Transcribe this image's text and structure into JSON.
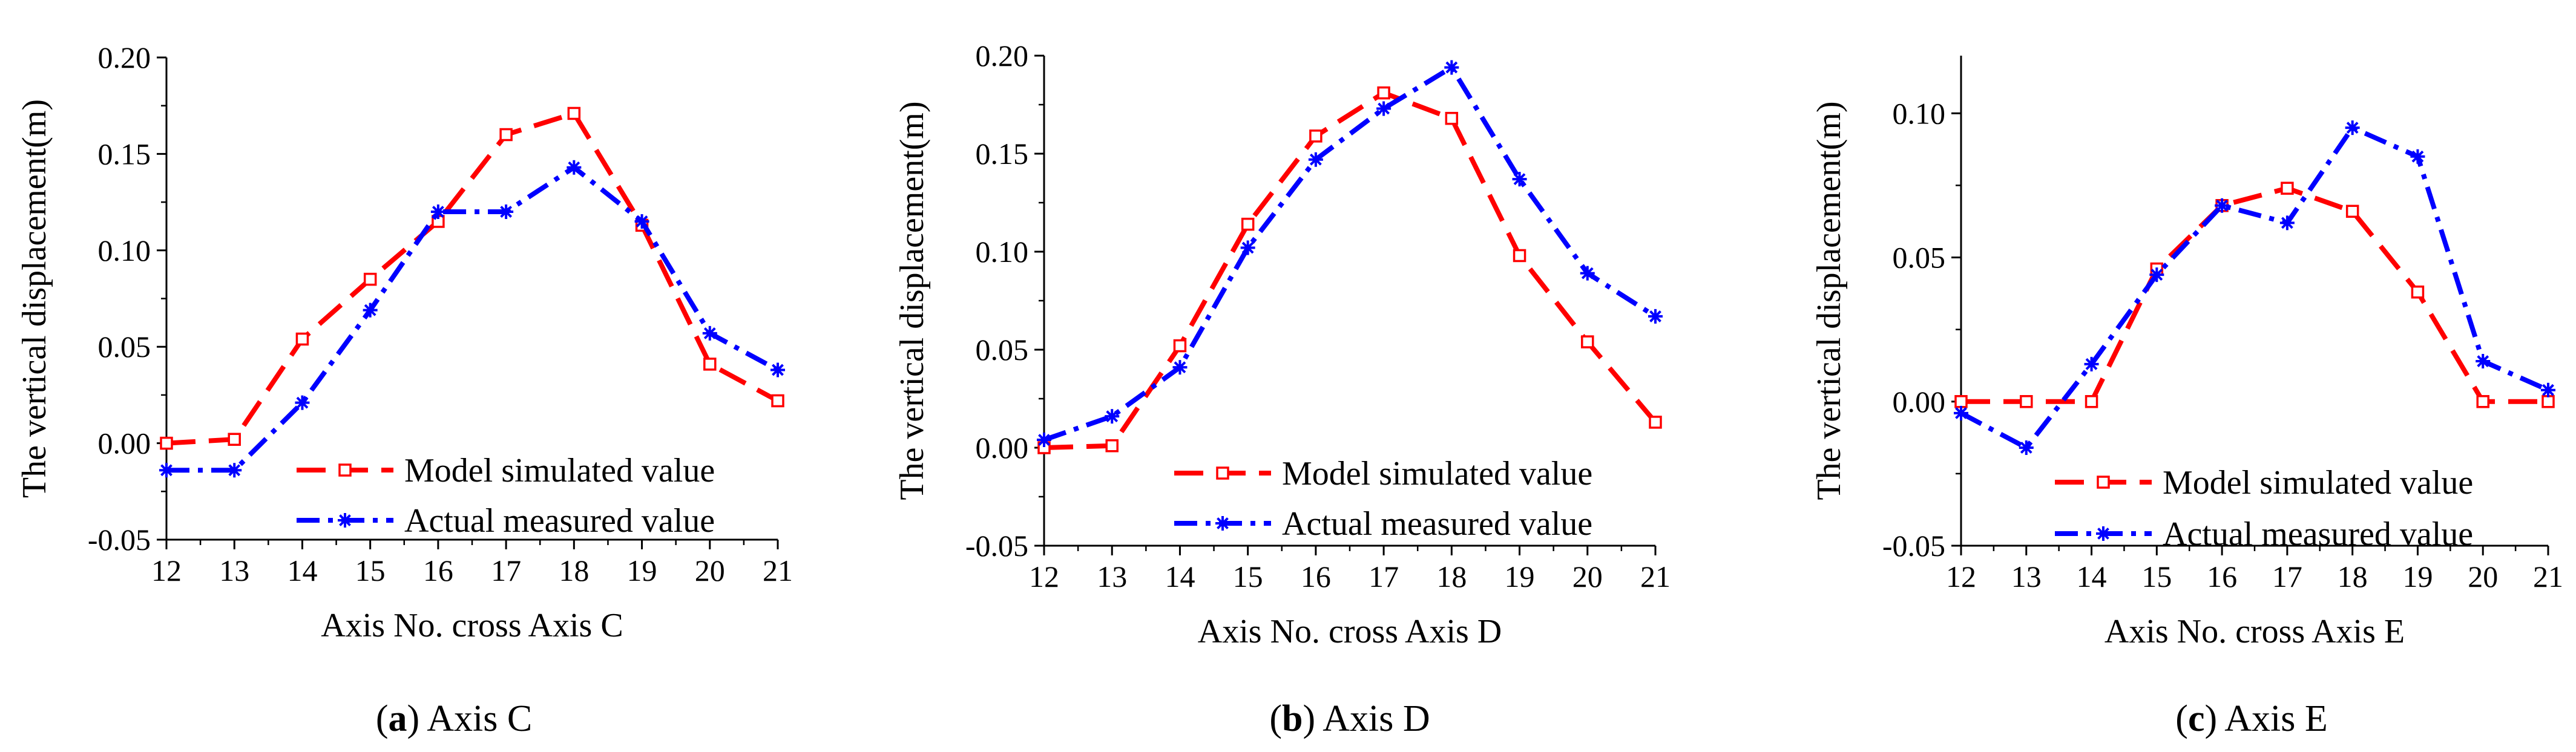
{
  "figure": {
    "colors": {
      "model": "#ff0000",
      "actual": "#0000ff",
      "axis": "#000000"
    }
  },
  "chart_data": [
    {
      "type": "line",
      "caption_letter": "a",
      "caption_text": "Axis C",
      "xlabel": "Axis No. cross Axis C",
      "ylabel": "The vertical displacement(m)",
      "xlim": [
        12,
        21
      ],
      "ylim": [
        -0.05,
        0.2
      ],
      "x_ticks": [
        12,
        13,
        14,
        15,
        16,
        17,
        18,
        19,
        20,
        21
      ],
      "x_tick_labels": [
        "12",
        "13",
        "14",
        "15",
        "16",
        "17",
        "18",
        "19",
        "20",
        "21"
      ],
      "y_ticks": [
        -0.05,
        0.0,
        0.05,
        0.1,
        0.15,
        0.2
      ],
      "y_tick_labels": [
        "-0.05",
        "0.00",
        "0.05",
        "0.10",
        "0.15",
        "0.20"
      ],
      "legend_position": "bottom-right",
      "x": [
        12,
        13,
        14,
        15,
        16,
        17,
        18,
        19,
        20,
        21
      ],
      "series": [
        {
          "name": "Model simulated value",
          "color": "#ff0000",
          "marker": "square",
          "dash": "long-dash",
          "values": [
            0.0,
            0.002,
            0.054,
            0.085,
            0.115,
            0.16,
            0.171,
            0.113,
            0.041,
            0.022
          ]
        },
        {
          "name": "Actual measured value",
          "color": "#0000ff",
          "marker": "star",
          "dash": "dash-dot",
          "values": [
            -0.014,
            -0.014,
            0.021,
            0.069,
            0.12,
            0.12,
            0.143,
            0.115,
            0.057,
            0.038
          ]
        }
      ]
    },
    {
      "type": "line",
      "caption_letter": "b",
      "caption_text": "Axis D",
      "xlabel": "Axis No. cross Axis D",
      "ylabel": "The vertical displacement(m)",
      "xlim": [
        12,
        21
      ],
      "ylim": [
        -0.05,
        0.2
      ],
      "x_ticks": [
        12,
        13,
        14,
        15,
        16,
        17,
        18,
        19,
        20,
        21
      ],
      "x_tick_labels": [
        "12",
        "13",
        "14",
        "15",
        "16",
        "17",
        "18",
        "19",
        "20",
        "21"
      ],
      "y_ticks": [
        -0.05,
        0.0,
        0.05,
        0.1,
        0.15,
        0.2
      ],
      "y_tick_labels": [
        "-0.05",
        "0.00",
        "0.05",
        "0.10",
        "0.15",
        "0.20"
      ],
      "legend_position": "bottom-right",
      "x": [
        12,
        13,
        14,
        15,
        16,
        17,
        18,
        19,
        20,
        21
      ],
      "series": [
        {
          "name": "Model simulated value",
          "color": "#ff0000",
          "marker": "square",
          "dash": "long-dash",
          "values": [
            0.0,
            0.001,
            0.052,
            0.114,
            0.159,
            0.181,
            0.168,
            0.098,
            0.054,
            0.013
          ]
        },
        {
          "name": "Actual measured value",
          "color": "#0000ff",
          "marker": "star",
          "dash": "dash-dot",
          "values": [
            0.004,
            0.016,
            0.041,
            0.102,
            0.147,
            0.173,
            0.194,
            0.137,
            0.089,
            0.067
          ]
        }
      ]
    },
    {
      "type": "line",
      "caption_letter": "c",
      "caption_text": "Axis E",
      "xlabel": "Axis No. cross Axis E",
      "ylabel": "The vertical displacement(m)",
      "xlim": [
        12,
        21
      ],
      "ylim": [
        -0.05,
        0.12
      ],
      "x_ticks": [
        12,
        13,
        14,
        15,
        16,
        17,
        18,
        19,
        20,
        21
      ],
      "x_tick_labels": [
        "12",
        "13",
        "14",
        "15",
        "16",
        "17",
        "18",
        "19",
        "20",
        "21"
      ],
      "y_ticks": [
        -0.05,
        0.0,
        0.05,
        0.1
      ],
      "y_tick_labels": [
        "-0.05",
        "0.00",
        "0.05",
        "0.10"
      ],
      "legend_position": "bottom-right",
      "x": [
        12,
        13,
        14,
        15,
        16,
        17,
        18,
        19,
        20,
        21
      ],
      "series": [
        {
          "name": "Model simulated value",
          "color": "#ff0000",
          "marker": "square",
          "dash": "long-dash",
          "values": [
            0.0,
            0.0,
            0.0,
            0.046,
            0.068,
            0.074,
            0.066,
            0.038,
            0.0,
            0.0
          ]
        },
        {
          "name": "Actual measured value",
          "color": "#0000ff",
          "marker": "star",
          "dash": "dash-dot",
          "values": [
            -0.004,
            -0.016,
            0.013,
            0.044,
            0.068,
            0.062,
            0.095,
            0.085,
            0.014,
            0.004
          ]
        }
      ]
    }
  ]
}
